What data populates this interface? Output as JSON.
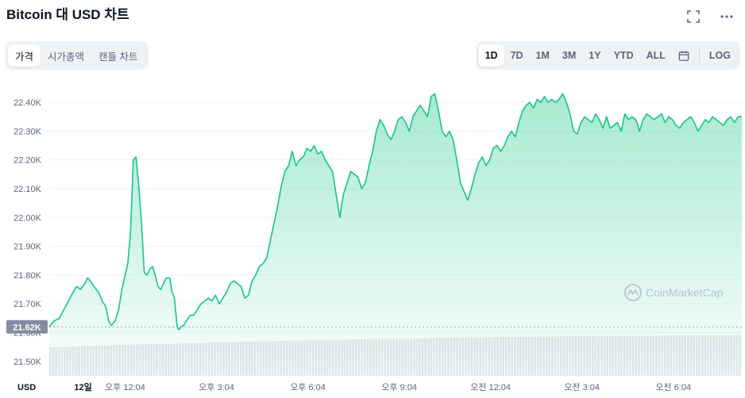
{
  "header": {
    "title": "Bitcoin 대 USD 차트"
  },
  "tabs": [
    {
      "label": "가격",
      "active": true
    },
    {
      "label": "시가총액",
      "active": false
    },
    {
      "label": "캔들 차트",
      "active": false
    }
  ],
  "ranges": [
    {
      "label": "1D",
      "active": true
    },
    {
      "label": "7D"
    },
    {
      "label": "1M"
    },
    {
      "label": "3M"
    },
    {
      "label": "1Y"
    },
    {
      "label": "YTD"
    },
    {
      "label": "ALL"
    }
  ],
  "log_label": "LOG",
  "icons": {
    "fullscreen": "expand-icon",
    "more": "more-horizontal-icon",
    "calendar": "calendar-icon"
  },
  "watermark": "CoinMarketCap",
  "colors": {
    "line": "#16c784",
    "fill_top": "#16c784",
    "down": "#ea3943",
    "current_label_bg": "#858ca2",
    "volume": "#e6e8ec"
  },
  "chart_data": {
    "type": "area",
    "currency_label": "USD",
    "current_value_label": "21.62K",
    "ylim": [
      21450,
      22480
    ],
    "yticks": [
      {
        "value": 22400,
        "label": "22.40K"
      },
      {
        "value": 22300,
        "label": "22.30K"
      },
      {
        "value": 22200,
        "label": "22.20K"
      },
      {
        "value": 22100,
        "label": "22.10K"
      },
      {
        "value": 22000,
        "label": "22.00K"
      },
      {
        "value": 21900,
        "label": "21.90K"
      },
      {
        "value": 21800,
        "label": "21.80K"
      },
      {
        "value": 21700,
        "label": "21.70K"
      },
      {
        "value": 21600,
        "label": "21.60K"
      },
      {
        "value": 21500,
        "label": "21.50K"
      }
    ],
    "xticks": [
      {
        "t": 0.1,
        "label": "12일",
        "bold": true
      },
      {
        "t": 0.56,
        "label": "오후 12:04"
      },
      {
        "t": 1.56,
        "label": "오후 3:04"
      },
      {
        "t": 2.56,
        "label": "오후 6:04"
      },
      {
        "t": 3.56,
        "label": "오후 9:04"
      },
      {
        "t": 4.56,
        "label": "오전 12:04"
      },
      {
        "t": 5.56,
        "label": "오전 3:04"
      },
      {
        "t": 6.56,
        "label": "오전 6:04"
      }
    ],
    "x_range": [
      -0.27,
      7.31
    ],
    "series": [
      {
        "values": [
          [
            -0.27,
            21620
          ],
          [
            -0.22,
            21640
          ],
          [
            -0.16,
            21650
          ],
          [
            -0.11,
            21680
          ],
          [
            -0.06,
            21710
          ],
          [
            -0.01,
            21740
          ],
          [
            0.03,
            21760
          ],
          [
            0.07,
            21750
          ],
          [
            0.12,
            21770
          ],
          [
            0.15,
            21790
          ],
          [
            0.18,
            21780
          ],
          [
            0.22,
            21760
          ],
          [
            0.27,
            21740
          ],
          [
            0.31,
            21710
          ],
          [
            0.35,
            21690
          ],
          [
            0.38,
            21640
          ],
          [
            0.41,
            21625
          ],
          [
            0.45,
            21640
          ],
          [
            0.49,
            21680
          ],
          [
            0.52,
            21740
          ],
          [
            0.56,
            21800
          ],
          [
            0.59,
            21840
          ],
          [
            0.62,
            21950
          ],
          [
            0.65,
            22200
          ],
          [
            0.68,
            22210
          ],
          [
            0.71,
            22110
          ],
          [
            0.74,
            21980
          ],
          [
            0.77,
            21810
          ],
          [
            0.8,
            21800
          ],
          [
            0.83,
            21820
          ],
          [
            0.86,
            21830
          ],
          [
            0.89,
            21800
          ],
          [
            0.92,
            21760
          ],
          [
            0.95,
            21750
          ],
          [
            0.98,
            21770
          ],
          [
            1.01,
            21790
          ],
          [
            1.05,
            21790
          ],
          [
            1.07,
            21745
          ],
          [
            1.1,
            21720
          ],
          [
            1.13,
            21620
          ],
          [
            1.15,
            21610
          ],
          [
            1.17,
            21620
          ],
          [
            1.2,
            21625
          ],
          [
            1.23,
            21640
          ],
          [
            1.27,
            21660
          ],
          [
            1.31,
            21660
          ],
          [
            1.35,
            21680
          ],
          [
            1.39,
            21700
          ],
          [
            1.43,
            21710
          ],
          [
            1.47,
            21720
          ],
          [
            1.51,
            21710
          ],
          [
            1.55,
            21730
          ],
          [
            1.59,
            21700
          ],
          [
            1.63,
            21720
          ],
          [
            1.67,
            21740
          ],
          [
            1.71,
            21770
          ],
          [
            1.75,
            21780
          ],
          [
            1.79,
            21770
          ],
          [
            1.83,
            21760
          ],
          [
            1.87,
            21720
          ],
          [
            1.91,
            21730
          ],
          [
            1.95,
            21780
          ],
          [
            1.99,
            21800
          ],
          [
            2.03,
            21830
          ],
          [
            2.07,
            21840
          ],
          [
            2.11,
            21860
          ],
          [
            2.15,
            21920
          ],
          [
            2.19,
            21980
          ],
          [
            2.23,
            22040
          ],
          [
            2.27,
            22110
          ],
          [
            2.31,
            22160
          ],
          [
            2.35,
            22180
          ],
          [
            2.39,
            22230
          ],
          [
            2.43,
            22180
          ],
          [
            2.47,
            22200
          ],
          [
            2.51,
            22210
          ],
          [
            2.55,
            22240
          ],
          [
            2.59,
            22230
          ],
          [
            2.63,
            22250
          ],
          [
            2.67,
            22220
          ],
          [
            2.71,
            22230
          ],
          [
            2.75,
            22200
          ],
          [
            2.79,
            22180
          ],
          [
            2.83,
            22160
          ],
          [
            2.87,
            22080
          ],
          [
            2.91,
            22000
          ],
          [
            2.95,
            22080
          ],
          [
            2.99,
            22120
          ],
          [
            3.03,
            22160
          ],
          [
            3.07,
            22150
          ],
          [
            3.11,
            22140
          ],
          [
            3.15,
            22100
          ],
          [
            3.19,
            22120
          ],
          [
            3.23,
            22180
          ],
          [
            3.27,
            22230
          ],
          [
            3.31,
            22300
          ],
          [
            3.35,
            22340
          ],
          [
            3.39,
            22320
          ],
          [
            3.43,
            22290
          ],
          [
            3.47,
            22270
          ],
          [
            3.51,
            22300
          ],
          [
            3.55,
            22340
          ],
          [
            3.59,
            22350
          ],
          [
            3.63,
            22330
          ],
          [
            3.67,
            22300
          ],
          [
            3.71,
            22350
          ],
          [
            3.75,
            22370
          ],
          [
            3.79,
            22390
          ],
          [
            3.83,
            22370
          ],
          [
            3.87,
            22350
          ],
          [
            3.91,
            22420
          ],
          [
            3.95,
            22430
          ],
          [
            3.99,
            22370
          ],
          [
            4.03,
            22300
          ],
          [
            4.07,
            22280
          ],
          [
            4.11,
            22300
          ],
          [
            4.15,
            22270
          ],
          [
            4.19,
            22200
          ],
          [
            4.23,
            22120
          ],
          [
            4.27,
            22090
          ],
          [
            4.31,
            22060
          ],
          [
            4.35,
            22100
          ],
          [
            4.39,
            22150
          ],
          [
            4.43,
            22190
          ],
          [
            4.47,
            22210
          ],
          [
            4.51,
            22180
          ],
          [
            4.55,
            22200
          ],
          [
            4.59,
            22240
          ],
          [
            4.63,
            22250
          ],
          [
            4.67,
            22230
          ],
          [
            4.71,
            22250
          ],
          [
            4.75,
            22280
          ],
          [
            4.79,
            22300
          ],
          [
            4.83,
            22280
          ],
          [
            4.87,
            22330
          ],
          [
            4.91,
            22370
          ],
          [
            4.95,
            22390
          ],
          [
            4.99,
            22400
          ],
          [
            5.03,
            22380
          ],
          [
            5.07,
            22410
          ],
          [
            5.11,
            22400
          ],
          [
            5.15,
            22420
          ],
          [
            5.19,
            22400
          ],
          [
            5.23,
            22410
          ],
          [
            5.27,
            22400
          ],
          [
            5.31,
            22410
          ],
          [
            5.35,
            22430
          ],
          [
            5.39,
            22400
          ],
          [
            5.43,
            22360
          ],
          [
            5.47,
            22300
          ],
          [
            5.51,
            22290
          ],
          [
            5.55,
            22330
          ],
          [
            5.59,
            22350
          ],
          [
            5.63,
            22340
          ],
          [
            5.67,
            22330
          ],
          [
            5.71,
            22360
          ],
          [
            5.75,
            22340
          ],
          [
            5.79,
            22310
          ],
          [
            5.83,
            22350
          ],
          [
            5.87,
            22310
          ],
          [
            5.91,
            22320
          ],
          [
            5.95,
            22330
          ],
          [
            5.99,
            22300
          ],
          [
            6.03,
            22360
          ],
          [
            6.07,
            22340
          ],
          [
            6.11,
            22350
          ],
          [
            6.15,
            22340
          ],
          [
            6.19,
            22300
          ],
          [
            6.23,
            22340
          ],
          [
            6.27,
            22360
          ],
          [
            6.31,
            22350
          ],
          [
            6.35,
            22340
          ],
          [
            6.39,
            22350
          ],
          [
            6.43,
            22360
          ],
          [
            6.47,
            22330
          ],
          [
            6.51,
            22350
          ],
          [
            6.55,
            22340
          ],
          [
            6.59,
            22320
          ],
          [
            6.63,
            22310
          ],
          [
            6.67,
            22330
          ],
          [
            6.71,
            22340
          ],
          [
            6.75,
            22350
          ],
          [
            6.79,
            22330
          ],
          [
            6.83,
            22300
          ],
          [
            6.87,
            22320
          ],
          [
            6.91,
            22340
          ],
          [
            6.95,
            22330
          ],
          [
            6.99,
            22350
          ],
          [
            7.03,
            22340
          ],
          [
            7.07,
            22330
          ],
          [
            7.11,
            22320
          ],
          [
            7.15,
            22340
          ],
          [
            7.19,
            22350
          ],
          [
            7.23,
            22330
          ],
          [
            7.27,
            22350
          ],
          [
            7.31,
            22350
          ]
        ]
      }
    ],
    "volume_level": [
      0.58,
      0.61,
      0.64,
      0.66,
      0.69,
      0.71,
      0.73,
      0.75,
      0.76,
      0.78,
      0.79,
      0.8,
      0.81,
      0.81,
      0.82,
      0.83
    ]
  }
}
